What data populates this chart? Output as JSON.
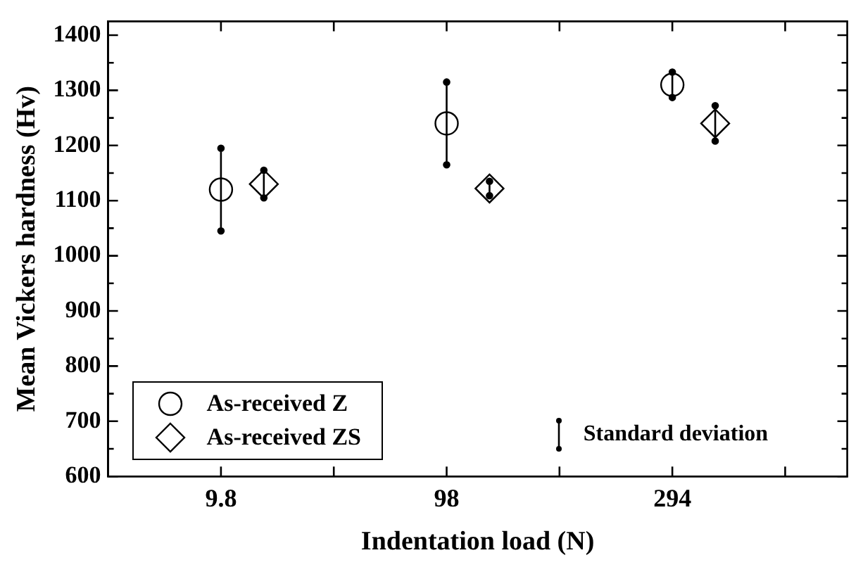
{
  "chart_data": {
    "type": "scatter",
    "xlabel": "Indentation load (N)",
    "ylabel": "Mean Vickers hardness (Hv)",
    "categories": [
      "9.8",
      "98",
      "294"
    ],
    "series": [
      {
        "name": "As-received Z",
        "color": "#000000",
        "marker": "circle",
        "values": [
          1120,
          1240,
          1310
        ],
        "errors": [
          75,
          75,
          23
        ]
      },
      {
        "name": "As-received ZS",
        "color": "#000000",
        "marker": "diamond",
        "values": [
          1130,
          1122,
          1240
        ],
        "errors": [
          25,
          13,
          32
        ]
      }
    ],
    "ylim": [
      600,
      1425
    ],
    "yticks": [
      600,
      700,
      800,
      900,
      1000,
      1100,
      1200,
      1300,
      1400
    ],
    "grid": false,
    "legend": "bottom left",
    "annotations": [
      "Standard deviation"
    ]
  }
}
